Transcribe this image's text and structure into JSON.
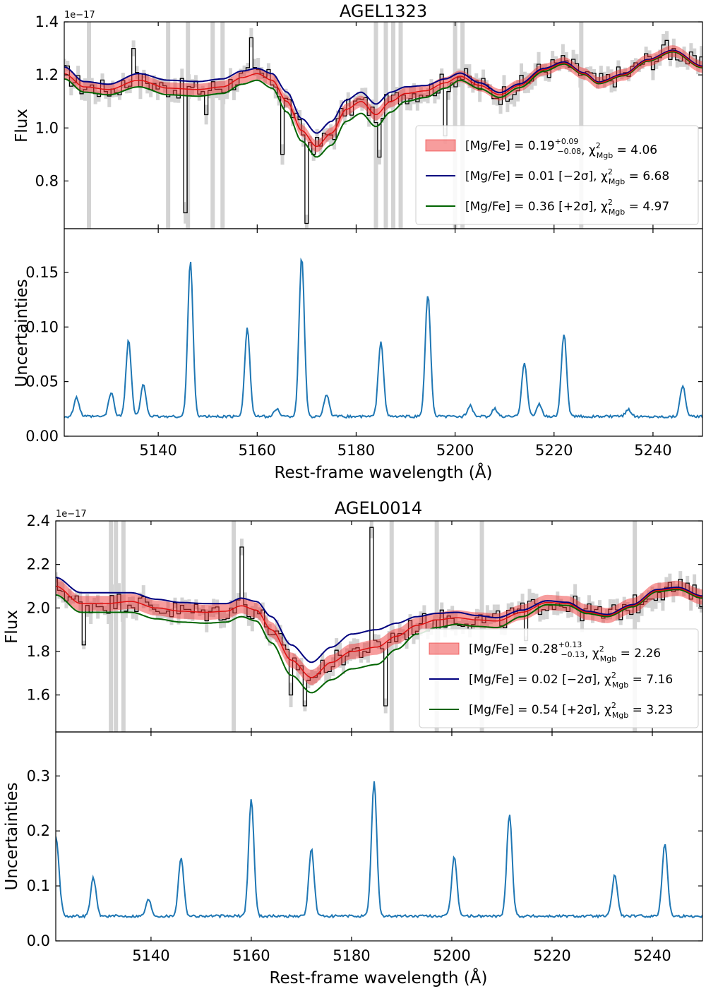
{
  "chart_data": [
    {
      "type": "line",
      "title": "AGEL1323",
      "xlabel": "Rest-frame wavelength (Å)",
      "xlim": [
        5121,
        5250
      ],
      "xticks": [
        5140,
        5160,
        5180,
        5200,
        5220,
        5240
      ],
      "flux_panel": {
        "ylabel": "Flux",
        "offset_label": "1e−17",
        "ylim": [
          0.62,
          1.4
        ],
        "yticks": [
          0.8,
          1.0,
          1.2,
          1.4
        ],
        "ytick_labels": [
          "0.8",
          "1.0",
          "1.2",
          "1.4"
        ],
        "legend_position": "lower-right",
        "legend": [
          {
            "kind": "band",
            "pre": "[Mg/Fe] = 0.19",
            "sup": "+0.09",
            "sub": "−0.08",
            "chi_label": ", χ",
            "chi_sup": "2",
            "chi_sub": "Mgb",
            "post": " = 4.06"
          },
          {
            "kind": "line",
            "color": "#00007f",
            "pre": "[Mg/Fe] = 0.01 [−2σ]",
            "chi_label": ", χ",
            "chi_sup": "2",
            "chi_sub": "Mgb",
            "post": " = 6.68"
          },
          {
            "kind": "line",
            "color": "#006400",
            "pre": "[Mg/Fe] = 0.36 [+2σ]",
            "chi_label": ", χ",
            "chi_sup": "2",
            "chi_sub": "Mgb",
            "post": " = 4.97"
          }
        ],
        "model_knots": {
          "x": [
            5121,
            5125,
            5130,
            5136,
            5142,
            5148,
            5153,
            5157,
            5160,
            5163,
            5166,
            5169,
            5172,
            5175,
            5178,
            5181,
            5184,
            5187,
            5190,
            5194,
            5198,
            5201,
            5205,
            5209,
            5213,
            5218,
            5222,
            5226,
            5229,
            5234,
            5239,
            5244,
            5250
          ],
          "best": [
            1.205,
            1.155,
            1.145,
            1.18,
            1.15,
            1.145,
            1.155,
            1.19,
            1.205,
            1.18,
            1.1,
            0.99,
            0.93,
            0.98,
            1.07,
            1.1,
            1.05,
            1.1,
            1.13,
            1.14,
            1.17,
            1.195,
            1.16,
            1.125,
            1.16,
            1.22,
            1.245,
            1.205,
            1.17,
            1.2,
            1.255,
            1.29,
            1.23
          ],
          "band_halfwidth": 0.022,
          "minus2sigma_offset": [
            0.025,
            0.02,
            0.02,
            0.025,
            0.03,
            0.03,
            0.03,
            0.025,
            0.02,
            0.025,
            0.035,
            0.045,
            0.05,
            0.045,
            0.035,
            0.035,
            0.04,
            0.035,
            0.025,
            0.02,
            0.015,
            0.012,
            0.01,
            0.008,
            0.006,
            0.005,
            0.004,
            0.003,
            0.003,
            0.003,
            0.003,
            0.003,
            0.003
          ],
          "plus2sigma_offset": [
            -0.02,
            -0.02,
            -0.02,
            -0.025,
            -0.025,
            -0.025,
            -0.025,
            -0.025,
            -0.025,
            -0.03,
            -0.04,
            -0.04,
            -0.04,
            -0.045,
            -0.045,
            -0.045,
            -0.045,
            -0.04,
            -0.03,
            -0.025,
            -0.02,
            -0.015,
            -0.012,
            -0.01,
            -0.008,
            -0.006,
            -0.004,
            -0.003,
            -0.003,
            -0.003,
            -0.003,
            -0.003,
            -0.003
          ]
        },
        "data_spikes": [
          [
            5146,
            0.68
          ],
          [
            5150,
            1.05
          ],
          [
            5165,
            0.9
          ],
          [
            5170,
            0.64
          ],
          [
            5185,
            0.89
          ],
          [
            5135,
            1.3
          ],
          [
            5159,
            1.34
          ],
          [
            5198,
            0.97
          ],
          [
            5243,
            1.33
          ]
        ],
        "masked_regions": [
          5126,
          5142,
          5146,
          5151,
          5153,
          5184,
          5186,
          5187.5,
          5189,
          5200,
          5201.5,
          5225.5
        ]
      },
      "uncertainty_panel": {
        "ylabel": "Uncertainties",
        "ylim": [
          0.0,
          0.19
        ],
        "yticks": [
          0.0,
          0.05,
          0.1,
          0.15
        ],
        "ytick_labels": [
          "0.00",
          "0.05",
          "0.10",
          "0.15"
        ],
        "baseline": 0.018,
        "peaks": [
          [
            5123.5,
            0.035
          ],
          [
            5130.5,
            0.04
          ],
          [
            5134,
            0.088
          ],
          [
            5137,
            0.047
          ],
          [
            5146.5,
            0.16
          ],
          [
            5158,
            0.099
          ],
          [
            5164,
            0.025
          ],
          [
            5169,
            0.164
          ],
          [
            5174,
            0.038
          ],
          [
            5185,
            0.087
          ],
          [
            5194.5,
            0.13
          ],
          [
            5203,
            0.028
          ],
          [
            5208,
            0.025
          ],
          [
            5214,
            0.068
          ],
          [
            5217,
            0.029
          ],
          [
            5222,
            0.094
          ],
          [
            5235,
            0.025
          ],
          [
            5246,
            0.046
          ]
        ],
        "series": "blue line"
      }
    },
    {
      "type": "line",
      "title": "AGEL0014",
      "xlabel": "Rest-frame wavelength (Å)",
      "xlim": [
        5121,
        5250
      ],
      "xticks": [
        5140,
        5160,
        5180,
        5200,
        5220,
        5240
      ],
      "flux_panel": {
        "ylabel": "Flux",
        "offset_label": "1e−17",
        "ylim": [
          1.43,
          2.4
        ],
        "yticks": [
          1.6,
          1.8,
          2.0,
          2.2,
          2.4
        ],
        "ytick_labels": [
          "1.6",
          "1.8",
          "2.0",
          "2.2",
          "2.4"
        ],
        "legend_position": "lower-right",
        "legend": [
          {
            "kind": "band",
            "pre": "[Mg/Fe] = 0.28",
            "sup": "+0.13",
            "sub": "−0.13",
            "chi_label": ", χ",
            "chi_sup": "2",
            "chi_sub": "Mgb",
            "post": " = 2.26"
          },
          {
            "kind": "line",
            "color": "#00007f",
            "pre": "[Mg/Fe] = 0.02 [−2σ]",
            "chi_label": ", χ",
            "chi_sup": "2",
            "chi_sub": "Mgb",
            "post": " = 7.16"
          },
          {
            "kind": "line",
            "color": "#006400",
            "pre": "[Mg/Fe] = 0.54 [+2σ]",
            "chi_label": ", χ",
            "chi_sup": "2",
            "chi_sub": "Mgb",
            "post": " = 3.23"
          }
        ],
        "model_knots": {
          "x": [
            5121,
            5126,
            5131,
            5136,
            5141,
            5146,
            5151,
            5155,
            5158,
            5161,
            5164,
            5168,
            5172,
            5176,
            5180,
            5185,
            5189,
            5193,
            5197,
            5201,
            5205,
            5209,
            5214,
            5219,
            5223,
            5227,
            5231,
            5236,
            5241,
            5245,
            5250
          ],
          "best": [
            2.1,
            2.02,
            2.02,
            2.03,
            2.0,
            1.985,
            1.98,
            1.985,
            2.01,
            1.99,
            1.9,
            1.76,
            1.68,
            1.75,
            1.8,
            1.82,
            1.87,
            1.92,
            1.945,
            1.955,
            1.945,
            1.94,
            1.98,
            2.025,
            2.02,
            1.98,
            1.965,
            2.01,
            2.08,
            2.09,
            2.05
          ],
          "band_halfwidth": 0.035,
          "minus2sigma_offset": [
            0.04,
            0.05,
            0.05,
            0.04,
            0.04,
            0.04,
            0.04,
            0.035,
            0.035,
            0.04,
            0.06,
            0.07,
            0.07,
            0.07,
            0.08,
            0.08,
            0.06,
            0.04,
            0.03,
            0.025,
            0.02,
            0.015,
            0.01,
            0.008,
            0.006,
            0.005,
            0.005,
            0.005,
            0.005,
            0.005,
            0.005
          ],
          "plus2sigma_offset": [
            -0.04,
            -0.04,
            -0.04,
            -0.05,
            -0.05,
            -0.05,
            -0.05,
            -0.05,
            -0.05,
            -0.05,
            -0.06,
            -0.07,
            -0.07,
            -0.08,
            -0.08,
            -0.08,
            -0.06,
            -0.04,
            -0.035,
            -0.03,
            -0.03,
            -0.03,
            -0.02,
            -0.01,
            -0.008,
            -0.006,
            -0.005,
            -0.005,
            -0.005,
            -0.005,
            -0.005
          ]
        },
        "data_spikes": [
          [
            5184,
            2.37
          ],
          [
            5187,
            1.55
          ],
          [
            5171,
            1.55
          ],
          [
            5158,
            2.28
          ],
          [
            5168,
            1.6
          ],
          [
            5127,
            1.83
          ],
          [
            5215,
            1.85
          ]
        ],
        "masked_regions": [
          5132,
          5133,
          5134.5,
          5156.5,
          5188,
          5197,
          5206,
          5236.5
        ]
      },
      "uncertainty_panel": {
        "ylabel": "Uncertainties",
        "ylim": [
          0.0,
          0.38
        ],
        "yticks": [
          0.0,
          0.1,
          0.2,
          0.3
        ],
        "ytick_labels": [
          "0.0",
          "0.1",
          "0.2",
          "0.3"
        ],
        "baseline": 0.045,
        "start_value": 0.19,
        "peaks": [
          [
            5128.5,
            0.115
          ],
          [
            5139.5,
            0.075
          ],
          [
            5146,
            0.152
          ],
          [
            5160,
            0.258
          ],
          [
            5172,
            0.167
          ],
          [
            5184.5,
            0.29
          ],
          [
            5200.5,
            0.153
          ],
          [
            5211.5,
            0.232
          ],
          [
            5232.5,
            0.12
          ],
          [
            5242.5,
            0.178
          ]
        ],
        "series": "blue line"
      }
    }
  ]
}
